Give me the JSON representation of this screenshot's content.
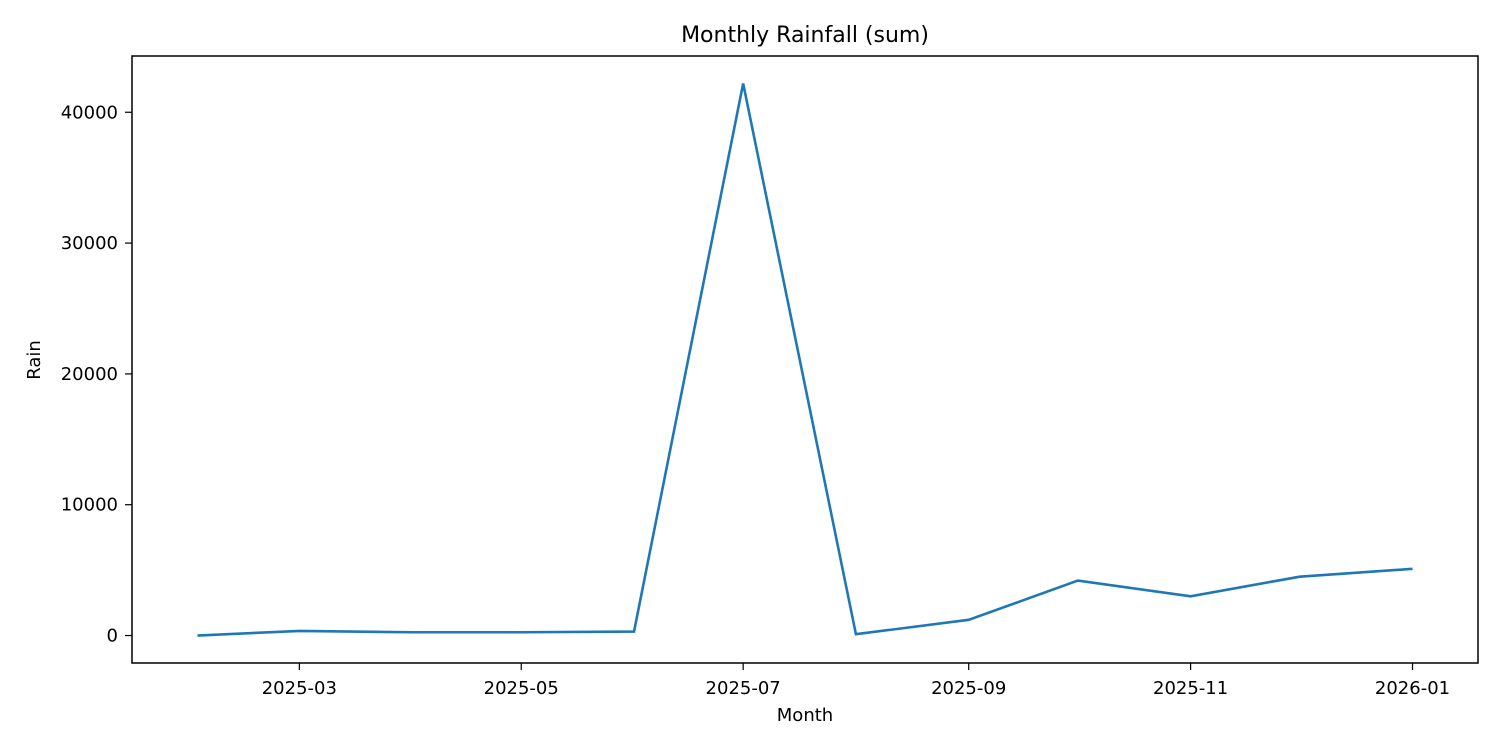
{
  "chart_data": {
    "type": "line",
    "title": "Monthly Rainfall (sum)",
    "xlabel": "Month",
    "ylabel": "Rain",
    "x": [
      "2025-02-01",
      "2025-03-01",
      "2025-04-01",
      "2025-05-01",
      "2025-06-01",
      "2025-07-01",
      "2025-08-01",
      "2025-09-01",
      "2025-10-01",
      "2025-11-01",
      "2025-12-01",
      "2026-01-01"
    ],
    "series": [
      {
        "values": [
          0,
          350,
          250,
          250,
          300,
          42200,
          100,
          1200,
          4200,
          3000,
          4500,
          5100
        ]
      }
    ],
    "xlim": [
      "2025-01-14",
      "2026-01-19"
    ],
    "ylim": [
      -2100,
      44300
    ],
    "xticks": [
      "2025-03-01",
      "2025-05-01",
      "2025-07-01",
      "2025-09-01",
      "2025-11-01",
      "2026-01-01"
    ],
    "xtick_labels": [
      "2025-03",
      "2025-05",
      "2025-07",
      "2025-09",
      "2025-11",
      "2026-01"
    ],
    "yticks": [
      0,
      10000,
      20000,
      30000,
      40000
    ],
    "ytick_labels": [
      "0",
      "10000",
      "20000",
      "30000",
      "40000"
    ],
    "grid": false,
    "colors": {
      "line": "#1f77b4",
      "axes": "#000000"
    }
  }
}
